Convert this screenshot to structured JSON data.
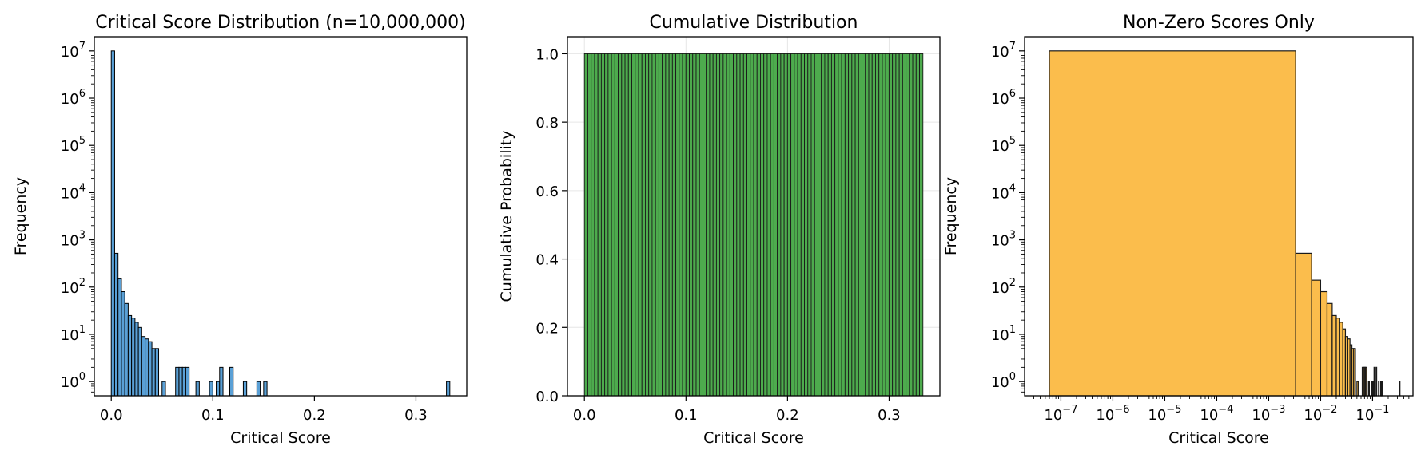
{
  "chart_data": [
    {
      "type": "bar",
      "title": "Critical Score Distribution (n=10,000,000)",
      "xlabel": "Critical Score",
      "ylabel": "Frequency",
      "yscale": "log",
      "xlim": [
        -0.0167,
        0.35
      ],
      "ylim": [
        0.5,
        20000000
      ],
      "xticks": [
        0.0,
        0.1,
        0.2,
        0.3
      ],
      "xtick_labels": [
        "0.0",
        "0.1",
        "0.2",
        "0.3"
      ],
      "yticks": [
        1,
        10,
        100,
        1000,
        10000,
        100000,
        1000000,
        10000000
      ],
      "ytick_labels": [
        [
          "10",
          "0"
        ],
        [
          "10",
          "1"
        ],
        [
          "10",
          "2"
        ],
        [
          "10",
          "3"
        ],
        [
          "10",
          "4"
        ],
        [
          "10",
          "5"
        ],
        [
          "10",
          "6"
        ],
        [
          "10",
          "7"
        ]
      ],
      "grid": false,
      "bin_width": 0.003333,
      "bars": [
        {
          "x": 0.0,
          "value": 9999000
        },
        {
          "x": 0.00333,
          "value": 520
        },
        {
          "x": 0.00667,
          "value": 150
        },
        {
          "x": 0.01,
          "value": 80
        },
        {
          "x": 0.01333,
          "value": 45
        },
        {
          "x": 0.01667,
          "value": 25
        },
        {
          "x": 0.02,
          "value": 22
        },
        {
          "x": 0.02333,
          "value": 18
        },
        {
          "x": 0.02667,
          "value": 14
        },
        {
          "x": 0.03,
          "value": 9
        },
        {
          "x": 0.03333,
          "value": 8
        },
        {
          "x": 0.03667,
          "value": 7
        },
        {
          "x": 0.04,
          "value": 5
        },
        {
          "x": 0.04333,
          "value": 5
        },
        {
          "x": 0.05,
          "value": 1
        },
        {
          "x": 0.06333,
          "value": 2
        },
        {
          "x": 0.06667,
          "value": 2
        },
        {
          "x": 0.07,
          "value": 2
        },
        {
          "x": 0.07333,
          "value": 2
        },
        {
          "x": 0.08333,
          "value": 1
        },
        {
          "x": 0.09667,
          "value": 1
        },
        {
          "x": 0.10333,
          "value": 1
        },
        {
          "x": 0.10667,
          "value": 2
        },
        {
          "x": 0.11667,
          "value": 2
        },
        {
          "x": 0.13,
          "value": 1
        },
        {
          "x": 0.14333,
          "value": 1
        },
        {
          "x": 0.15,
          "value": 1
        },
        {
          "x": 0.33,
          "value": 1
        }
      ],
      "colors": {
        "fill": "#5aa0d6",
        "edge": "#000000"
      }
    },
    {
      "type": "bar",
      "title": "Cumulative Distribution",
      "xlabel": "Critical Score",
      "ylabel": "Cumulative Probability",
      "xlim": [
        -0.0167,
        0.35
      ],
      "ylim": [
        0.0,
        1.05
      ],
      "xticks": [
        0.0,
        0.1,
        0.2,
        0.3
      ],
      "xtick_labels": [
        "0.0",
        "0.1",
        "0.2",
        "0.3"
      ],
      "yticks": [
        0.0,
        0.2,
        0.4,
        0.6,
        0.8,
        1.0
      ],
      "ytick_labels": [
        "0.0",
        "0.2",
        "0.4",
        "0.6",
        "0.8",
        "1.0"
      ],
      "grid": true,
      "range": [
        0.0,
        0.3333
      ],
      "bins": 100,
      "value": 1.0,
      "colors": {
        "fill": "#4dab4d",
        "edge": "#1a1a1a"
      }
    },
    {
      "type": "bar",
      "title": "Non-Zero Scores Only",
      "xlabel": "Critical Score",
      "ylabel": "Frequency",
      "xscale": "log",
      "yscale": "log",
      "xlim": [
        2e-08,
        0.6
      ],
      "ylim": [
        0.5,
        20000000
      ],
      "xticks": [
        1e-07,
        1e-06,
        1e-05,
        0.0001,
        0.001,
        0.01,
        0.1
      ],
      "xtick_labels": [
        [
          "10",
          "−7"
        ],
        [
          "10",
          "−6"
        ],
        [
          "10",
          "−5"
        ],
        [
          "10",
          "−4"
        ],
        [
          "10",
          "−3"
        ],
        [
          "10",
          "−2"
        ],
        [
          "10",
          "−1"
        ]
      ],
      "yticks": [
        1,
        10,
        100,
        1000,
        10000,
        100000,
        1000000,
        10000000
      ],
      "ytick_labels": [
        [
          "10",
          "0"
        ],
        [
          "10",
          "1"
        ],
        [
          "10",
          "2"
        ],
        [
          "10",
          "3"
        ],
        [
          "10",
          "4"
        ],
        [
          "10",
          "5"
        ],
        [
          "10",
          "6"
        ],
        [
          "10",
          "7"
        ]
      ],
      "grid": false,
      "bars": [
        {
          "x0": 6e-08,
          "x1": 0.0033,
          "value": 9999000
        },
        {
          "x0": 0.0033,
          "x1": 0.0067,
          "value": 520
        },
        {
          "x0": 0.0067,
          "x1": 0.01,
          "value": 140
        },
        {
          "x0": 0.01,
          "x1": 0.0133,
          "value": 80
        },
        {
          "x0": 0.0133,
          "x1": 0.0167,
          "value": 45
        },
        {
          "x0": 0.0167,
          "x1": 0.02,
          "value": 25
        },
        {
          "x0": 0.02,
          "x1": 0.0233,
          "value": 22
        },
        {
          "x0": 0.0233,
          "x1": 0.0267,
          "value": 18
        },
        {
          "x0": 0.0267,
          "x1": 0.03,
          "value": 13
        },
        {
          "x0": 0.03,
          "x1": 0.0333,
          "value": 9
        },
        {
          "x0": 0.0333,
          "x1": 0.0367,
          "value": 8
        },
        {
          "x0": 0.0367,
          "x1": 0.04,
          "value": 6
        },
        {
          "x0": 0.04,
          "x1": 0.0433,
          "value": 5
        },
        {
          "x0": 0.0433,
          "x1": 0.0467,
          "value": 5
        },
        {
          "x0": 0.05,
          "x1": 0.0533,
          "value": 1
        },
        {
          "x0": 0.0633,
          "x1": 0.0667,
          "value": 2
        },
        {
          "x0": 0.0667,
          "x1": 0.07,
          "value": 2
        },
        {
          "x0": 0.07,
          "x1": 0.0733,
          "value": 2
        },
        {
          "x0": 0.0733,
          "x1": 0.0767,
          "value": 2
        },
        {
          "x0": 0.0833,
          "x1": 0.0867,
          "value": 1
        },
        {
          "x0": 0.0967,
          "x1": 0.1,
          "value": 1
        },
        {
          "x0": 0.1033,
          "x1": 0.1067,
          "value": 1
        },
        {
          "x0": 0.1067,
          "x1": 0.11,
          "value": 2
        },
        {
          "x0": 0.1167,
          "x1": 0.12,
          "value": 2
        },
        {
          "x0": 0.13,
          "x1": 0.1333,
          "value": 1
        },
        {
          "x0": 0.1433,
          "x1": 0.1467,
          "value": 1
        },
        {
          "x0": 0.15,
          "x1": 0.1533,
          "value": 1
        },
        {
          "x0": 0.33,
          "x1": 0.3333,
          "value": 1
        }
      ],
      "colors": {
        "fill": "#fbbd4c",
        "edge": "#1a1a1a"
      }
    }
  ]
}
